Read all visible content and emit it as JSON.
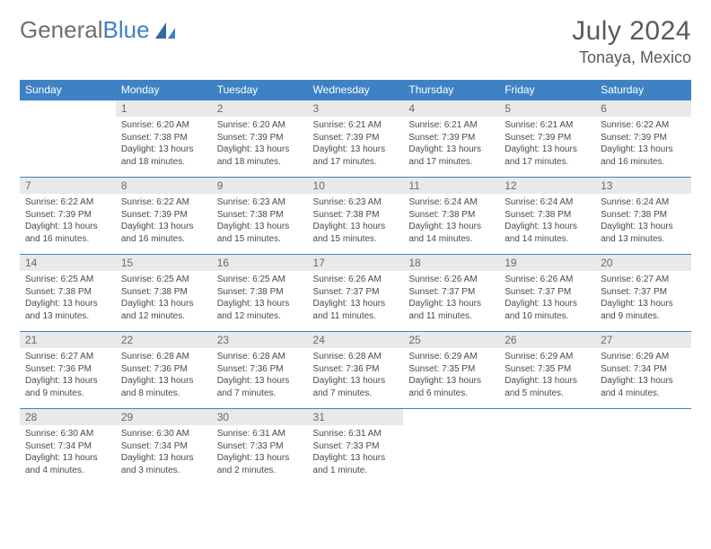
{
  "brand": {
    "name_a": "General",
    "name_b": "Blue"
  },
  "title": {
    "month": "July 2024",
    "location": "Tonaya, Mexico"
  },
  "colors": {
    "header_bg": "#3e82c4",
    "daynum_bg": "#e9e9e9",
    "rule": "#3e82c4"
  },
  "weekdays": [
    "Sunday",
    "Monday",
    "Tuesday",
    "Wednesday",
    "Thursday",
    "Friday",
    "Saturday"
  ],
  "month_layout": {
    "first_weekday_index": 1,
    "days_in_month": 31
  },
  "days": {
    "1": {
      "sunrise": "Sunrise: 6:20 AM",
      "sunset": "Sunset: 7:38 PM",
      "daylight": "Daylight: 13 hours and 18 minutes."
    },
    "2": {
      "sunrise": "Sunrise: 6:20 AM",
      "sunset": "Sunset: 7:39 PM",
      "daylight": "Daylight: 13 hours and 18 minutes."
    },
    "3": {
      "sunrise": "Sunrise: 6:21 AM",
      "sunset": "Sunset: 7:39 PM",
      "daylight": "Daylight: 13 hours and 17 minutes."
    },
    "4": {
      "sunrise": "Sunrise: 6:21 AM",
      "sunset": "Sunset: 7:39 PM",
      "daylight": "Daylight: 13 hours and 17 minutes."
    },
    "5": {
      "sunrise": "Sunrise: 6:21 AM",
      "sunset": "Sunset: 7:39 PM",
      "daylight": "Daylight: 13 hours and 17 minutes."
    },
    "6": {
      "sunrise": "Sunrise: 6:22 AM",
      "sunset": "Sunset: 7:39 PM",
      "daylight": "Daylight: 13 hours and 16 minutes."
    },
    "7": {
      "sunrise": "Sunrise: 6:22 AM",
      "sunset": "Sunset: 7:39 PM",
      "daylight": "Daylight: 13 hours and 16 minutes."
    },
    "8": {
      "sunrise": "Sunrise: 6:22 AM",
      "sunset": "Sunset: 7:39 PM",
      "daylight": "Daylight: 13 hours and 16 minutes."
    },
    "9": {
      "sunrise": "Sunrise: 6:23 AM",
      "sunset": "Sunset: 7:38 PM",
      "daylight": "Daylight: 13 hours and 15 minutes."
    },
    "10": {
      "sunrise": "Sunrise: 6:23 AM",
      "sunset": "Sunset: 7:38 PM",
      "daylight": "Daylight: 13 hours and 15 minutes."
    },
    "11": {
      "sunrise": "Sunrise: 6:24 AM",
      "sunset": "Sunset: 7:38 PM",
      "daylight": "Daylight: 13 hours and 14 minutes."
    },
    "12": {
      "sunrise": "Sunrise: 6:24 AM",
      "sunset": "Sunset: 7:38 PM",
      "daylight": "Daylight: 13 hours and 14 minutes."
    },
    "13": {
      "sunrise": "Sunrise: 6:24 AM",
      "sunset": "Sunset: 7:38 PM",
      "daylight": "Daylight: 13 hours and 13 minutes."
    },
    "14": {
      "sunrise": "Sunrise: 6:25 AM",
      "sunset": "Sunset: 7:38 PM",
      "daylight": "Daylight: 13 hours and 13 minutes."
    },
    "15": {
      "sunrise": "Sunrise: 6:25 AM",
      "sunset": "Sunset: 7:38 PM",
      "daylight": "Daylight: 13 hours and 12 minutes."
    },
    "16": {
      "sunrise": "Sunrise: 6:25 AM",
      "sunset": "Sunset: 7:38 PM",
      "daylight": "Daylight: 13 hours and 12 minutes."
    },
    "17": {
      "sunrise": "Sunrise: 6:26 AM",
      "sunset": "Sunset: 7:37 PM",
      "daylight": "Daylight: 13 hours and 11 minutes."
    },
    "18": {
      "sunrise": "Sunrise: 6:26 AM",
      "sunset": "Sunset: 7:37 PM",
      "daylight": "Daylight: 13 hours and 11 minutes."
    },
    "19": {
      "sunrise": "Sunrise: 6:26 AM",
      "sunset": "Sunset: 7:37 PM",
      "daylight": "Daylight: 13 hours and 10 minutes."
    },
    "20": {
      "sunrise": "Sunrise: 6:27 AM",
      "sunset": "Sunset: 7:37 PM",
      "daylight": "Daylight: 13 hours and 9 minutes."
    },
    "21": {
      "sunrise": "Sunrise: 6:27 AM",
      "sunset": "Sunset: 7:36 PM",
      "daylight": "Daylight: 13 hours and 9 minutes."
    },
    "22": {
      "sunrise": "Sunrise: 6:28 AM",
      "sunset": "Sunset: 7:36 PM",
      "daylight": "Daylight: 13 hours and 8 minutes."
    },
    "23": {
      "sunrise": "Sunrise: 6:28 AM",
      "sunset": "Sunset: 7:36 PM",
      "daylight": "Daylight: 13 hours and 7 minutes."
    },
    "24": {
      "sunrise": "Sunrise: 6:28 AM",
      "sunset": "Sunset: 7:36 PM",
      "daylight": "Daylight: 13 hours and 7 minutes."
    },
    "25": {
      "sunrise": "Sunrise: 6:29 AM",
      "sunset": "Sunset: 7:35 PM",
      "daylight": "Daylight: 13 hours and 6 minutes."
    },
    "26": {
      "sunrise": "Sunrise: 6:29 AM",
      "sunset": "Sunset: 7:35 PM",
      "daylight": "Daylight: 13 hours and 5 minutes."
    },
    "27": {
      "sunrise": "Sunrise: 6:29 AM",
      "sunset": "Sunset: 7:34 PM",
      "daylight": "Daylight: 13 hours and 4 minutes."
    },
    "28": {
      "sunrise": "Sunrise: 6:30 AM",
      "sunset": "Sunset: 7:34 PM",
      "daylight": "Daylight: 13 hours and 4 minutes."
    },
    "29": {
      "sunrise": "Sunrise: 6:30 AM",
      "sunset": "Sunset: 7:34 PM",
      "daylight": "Daylight: 13 hours and 3 minutes."
    },
    "30": {
      "sunrise": "Sunrise: 6:31 AM",
      "sunset": "Sunset: 7:33 PM",
      "daylight": "Daylight: 13 hours and 2 minutes."
    },
    "31": {
      "sunrise": "Sunrise: 6:31 AM",
      "sunset": "Sunset: 7:33 PM",
      "daylight": "Daylight: 13 hours and 1 minute."
    }
  }
}
